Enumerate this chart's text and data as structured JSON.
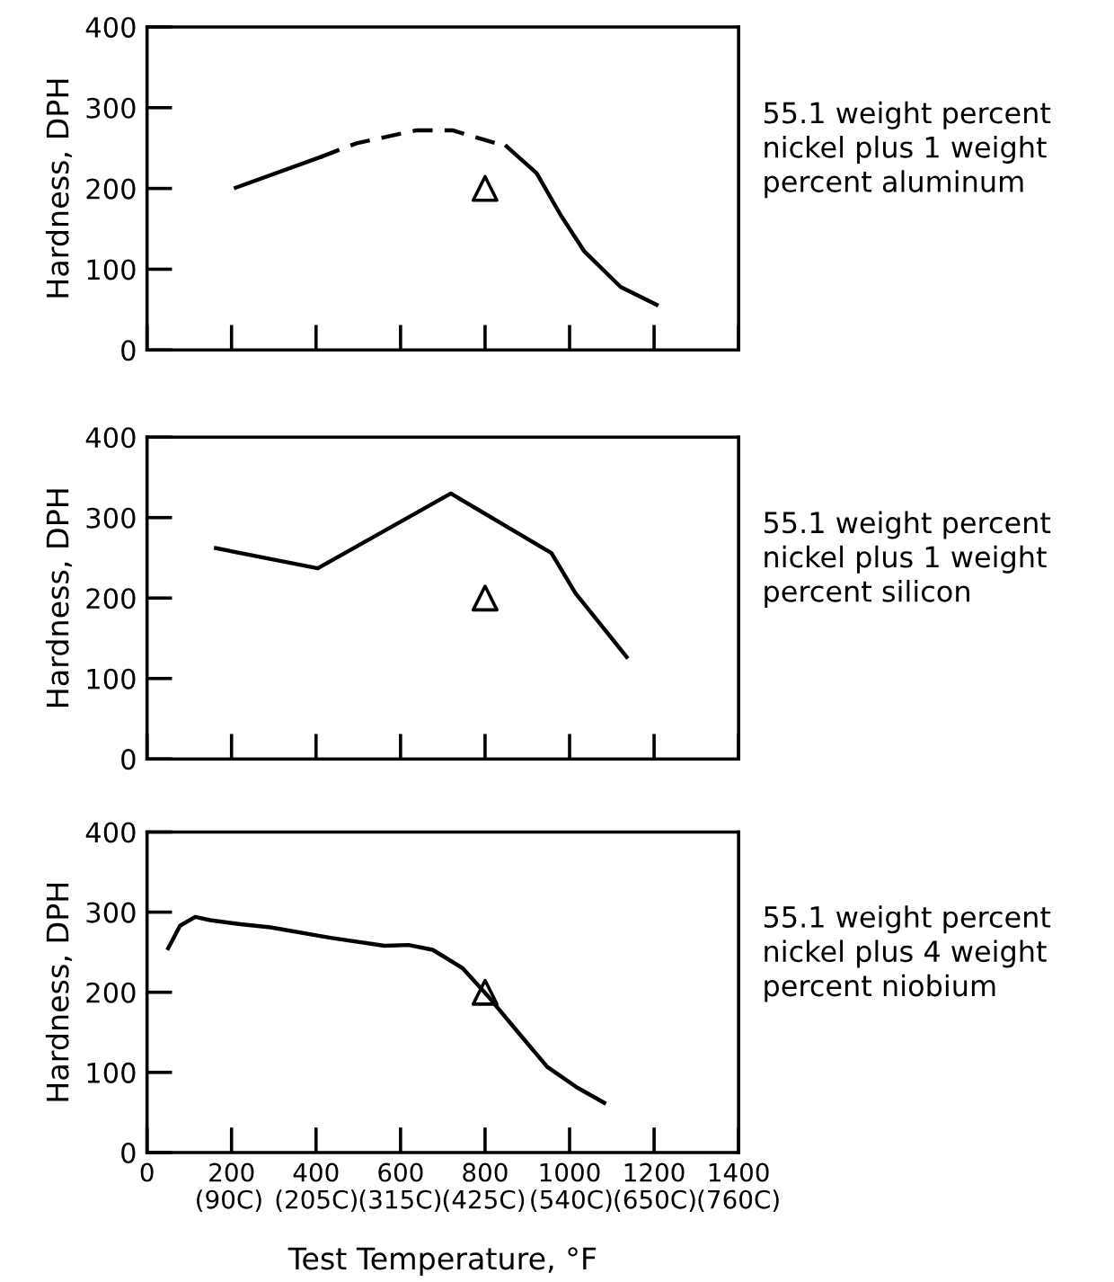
{
  "chart_data": [
    {
      "type": "line",
      "ylabel": "Hardness, DPH",
      "xlim": [
        0,
        1400
      ],
      "ylim": [
        0,
        400
      ],
      "xticks": [
        0,
        200,
        400,
        600,
        800,
        1000,
        1200,
        1400
      ],
      "yticks": [
        0,
        100,
        200,
        300,
        400
      ],
      "tick_labels": "y",
      "grid": false,
      "legend": false,
      "annotations": [
        "55.1 weight percent\nnickel plus 1 weight\npercent aluminum"
      ],
      "series": [
        {
          "color": "#000000",
          "line_style": "solid",
          "marker": "none",
          "x": [
            210,
            411
          ],
          "values": [
            201,
            239
          ]
        },
        {
          "color": "#000000",
          "line_style": "dashed",
          "marker": "none",
          "x": [
            411,
            496,
            638,
            723,
            851
          ],
          "values": [
            239,
            256,
            272,
            272,
            252
          ]
        },
        {
          "color": "#000000",
          "line_style": "solid",
          "marker": "none",
          "x": [
            851,
            922,
            979,
            1035,
            1121,
            1206
          ],
          "values": [
            252,
            219,
            167,
            122,
            78,
            56
          ]
        },
        {
          "type": "scatter",
          "color": "#000000",
          "marker": "triangle",
          "x": [
            800
          ],
          "values": [
            200
          ]
        }
      ]
    },
    {
      "type": "line",
      "ylabel": "Hardness, DPH",
      "xlim": [
        0,
        1400
      ],
      "ylim": [
        0,
        400
      ],
      "xticks": [
        0,
        200,
        400,
        600,
        800,
        1000,
        1200,
        1400
      ],
      "yticks": [
        0,
        100,
        200,
        300,
        400
      ],
      "tick_labels": "y",
      "grid": false,
      "legend": false,
      "annotations": [
        "55.1 weight percent\nnickel plus 1 weight\npercent silicon"
      ],
      "series": [
        {
          "color": "#000000",
          "line_style": "solid",
          "marker": "none",
          "x": [
            163,
            404,
            719,
            957,
            1014,
            1135
          ],
          "values": [
            262,
            237,
            330,
            256,
            206,
            127
          ]
        },
        {
          "type": "scatter",
          "color": "#000000",
          "marker": "triangle",
          "x": [
            800
          ],
          "values": [
            200
          ]
        }
      ]
    },
    {
      "type": "line",
      "ylabel": "Hardness, DPH",
      "xlabel": "Test Temperature, °F",
      "xlim": [
        0,
        1400
      ],
      "ylim": [
        0,
        400
      ],
      "xticks": [
        0,
        200,
        400,
        600,
        800,
        1000,
        1200,
        1400
      ],
      "x2lim": [
        -17.8,
        760
      ],
      "x2ticks": [
        {
          "value": 90,
          "label": "(90C)"
        },
        {
          "value": 205,
          "label": "(205C)"
        },
        {
          "value": 315,
          "label": "(315C)"
        },
        {
          "value": 425,
          "label": "(425C)"
        },
        {
          "value": 540,
          "label": "(540C)"
        },
        {
          "value": 650,
          "label": "(650C)"
        },
        {
          "value": 760,
          "label": "(760C)"
        }
      ],
      "yticks": [
        0,
        100,
        200,
        300,
        400
      ],
      "grid": false,
      "legend": false,
      "annotations": [
        "55.1 weight percent\nnickel plus 4 weight\npercent niobium"
      ],
      "series": [
        {
          "color": "#000000",
          "line_style": "solid",
          "marker": "none",
          "x": [
            50,
            78,
            114,
            149,
            221,
            292,
            434,
            562,
            619,
            676,
            747,
            804,
            875,
            947,
            1018,
            1082
          ],
          "values": [
            255,
            283,
            294,
            290,
            285,
            281,
            268,
            258,
            259,
            253,
            230,
            197,
            152,
            107,
            81,
            62
          ]
        },
        {
          "type": "scatter",
          "color": "#000000",
          "marker": "triangle",
          "x": [
            800
          ],
          "values": [
            200
          ]
        }
      ]
    }
  ]
}
